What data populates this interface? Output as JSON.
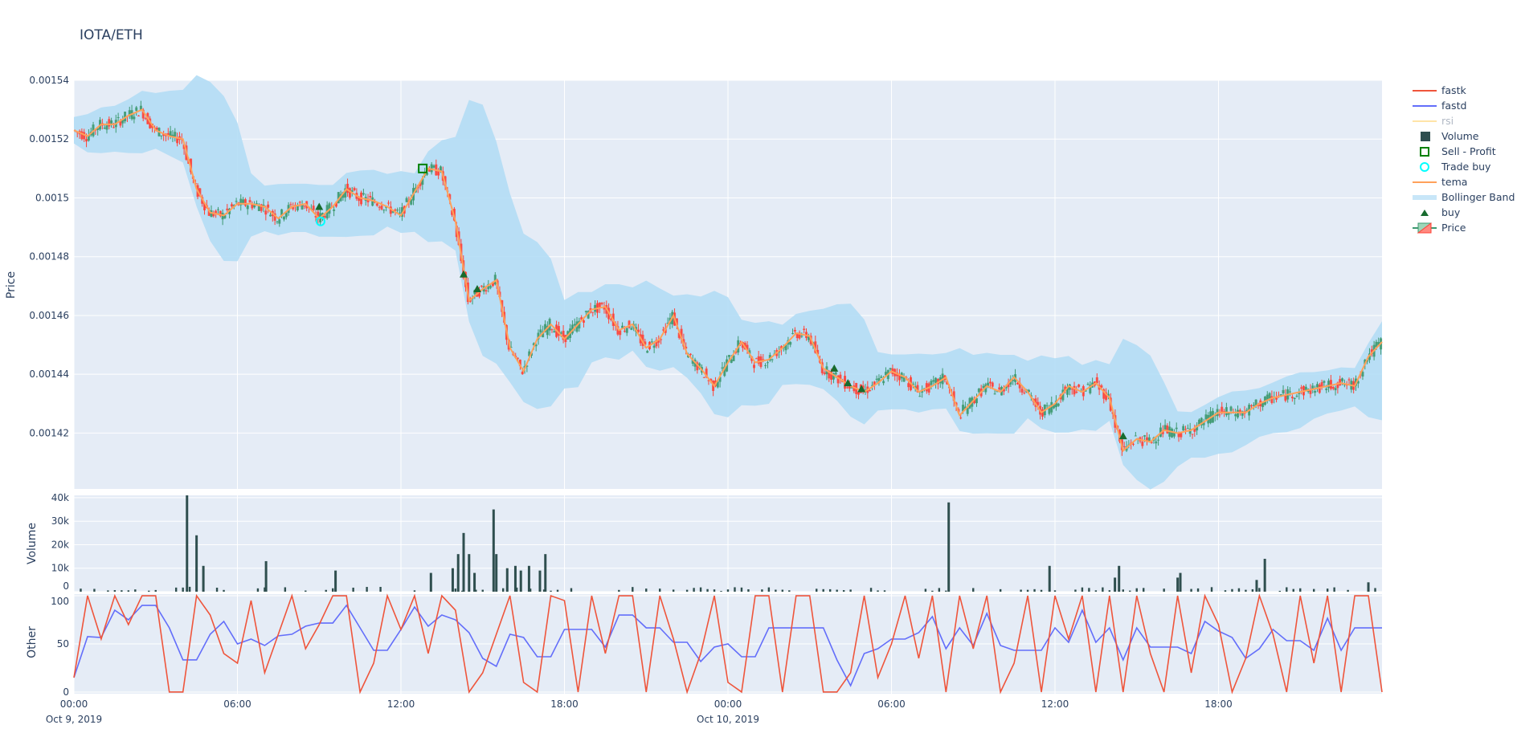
{
  "title": "IOTA/ETH",
  "colors": {
    "increasing": "#3D9970",
    "decreasing": "#FF4136",
    "tema": "#FFA15A",
    "bollinger": "#B3DDF5",
    "fastk": "#EF553B",
    "fastd": "#636EFA",
    "rsi": "#FFE4A8",
    "volume": "#2F4F4F",
    "buy": "#176B2E",
    "sell_profit": "#008000",
    "trade_buy": "#00FFFF",
    "plot_bg": "#E5ECF6",
    "grid": "#FFFFFF"
  },
  "legend": [
    {
      "name": "fastk",
      "symbol": "line",
      "color": "#EF553B"
    },
    {
      "name": "fastd",
      "symbol": "line",
      "color": "#636EFA"
    },
    {
      "name": "rsi",
      "symbol": "line",
      "color": "#FFE4A8",
      "hidden": true
    },
    {
      "name": "Volume",
      "symbol": "square",
      "color": "#2F4F4F"
    },
    {
      "name": "Sell - Profit",
      "symbol": "square-open",
      "color": "#008000"
    },
    {
      "name": "Trade buy",
      "symbol": "circle-open",
      "color": "#00FFFF"
    },
    {
      "name": "tema",
      "symbol": "line",
      "color": "#FFA15A"
    },
    {
      "name": "Bollinger Band",
      "symbol": "band",
      "color": "#C8E6F8"
    },
    {
      "name": "buy",
      "symbol": "triangle-up",
      "color": "#176B2E"
    },
    {
      "name": "Price",
      "symbol": "candlestick",
      "color": "#3D9970"
    }
  ],
  "chart_data": [
    {
      "type": "candlestick",
      "ylabel": "Price",
      "ylim": [
        0.001401,
        0.00154
      ],
      "yticks": [
        "0.00142",
        "0.00144",
        "0.00146",
        "0.00148",
        "0.0015",
        "0.00152",
        "0.00154"
      ],
      "ytick_values": [
        0.00142,
        0.00144,
        0.00146,
        0.00148,
        0.0015,
        0.00152,
        0.00154
      ],
      "x_start": "Oct 9, 2019 00:00",
      "x_step_hours": 0.5,
      "close": [
        0.001523,
        0.001521,
        0.001525,
        0.001525,
        0.001528,
        0.00153,
        0.001523,
        0.001521,
        0.00152,
        0.001503,
        0.001495,
        0.001494,
        0.001498,
        0.001498,
        0.001497,
        0.001493,
        0.001497,
        0.001498,
        0.001493,
        0.001497,
        0.001503,
        0.0015,
        0.001499,
        0.001497,
        0.001494,
        0.001502,
        0.00151,
        0.001509,
        0.001492,
        0.001465,
        0.001469,
        0.001472,
        0.001449,
        0.001441,
        0.001452,
        0.001457,
        0.001452,
        0.001457,
        0.001462,
        0.001463,
        0.001455,
        0.001457,
        0.001449,
        0.001452,
        0.00146,
        0.001447,
        0.001442,
        0.001436,
        0.001444,
        0.001451,
        0.001444,
        0.001445,
        0.001449,
        0.001454,
        0.001453,
        0.001442,
        0.001439,
        0.001436,
        0.001434,
        0.001437,
        0.001441,
        0.001439,
        0.001434,
        0.001436,
        0.001439,
        0.001426,
        0.001431,
        0.001436,
        0.001434,
        0.001439,
        0.001434,
        0.001427,
        0.00143,
        0.001436,
        0.001434,
        0.001437,
        0.001432,
        0.001414,
        0.001418,
        0.001417,
        0.001421,
        0.00142,
        0.001421,
        0.001424,
        0.001427,
        0.001427,
        0.001427,
        0.00143,
        0.001432,
        0.001433,
        0.001434,
        0.001435,
        0.001436,
        0.001437,
        0.001436,
        0.001446,
        0.001451
      ],
      "buy": [
        [
          9.0,
          0.001497
        ],
        [
          14.3,
          0.001474
        ],
        [
          14.8,
          0.001469
        ],
        [
          27.9,
          0.001442
        ],
        [
          28.4,
          0.001437
        ],
        [
          28.9,
          0.001435
        ],
        [
          38.5,
          0.001419
        ]
      ],
      "sell_profit": [
        [
          12.8,
          0.00151
        ]
      ],
      "trade_buy": [
        [
          9.05,
          0.001492
        ]
      ],
      "series": [
        "Price",
        "tema",
        "Bollinger Band",
        "buy",
        "Sell - Profit",
        "Trade buy"
      ]
    },
    {
      "type": "bar",
      "ylabel": "Volume",
      "ylim": [
        0,
        41000
      ],
      "yticks": [
        "0",
        "10k",
        "20k",
        "30k",
        "40k"
      ],
      "ytick_values": [
        0,
        10000,
        20000,
        30000,
        40000
      ],
      "spikes": [
        [
          4.15,
          41000
        ],
        [
          4.5,
          24000
        ],
        [
          4.75,
          11000
        ],
        [
          7.05,
          13000
        ],
        [
          9.6,
          9000
        ],
        [
          13.1,
          8000
        ],
        [
          13.9,
          10000
        ],
        [
          14.1,
          16000
        ],
        [
          14.3,
          25000
        ],
        [
          14.5,
          16000
        ],
        [
          14.7,
          8000
        ],
        [
          15.4,
          35000
        ],
        [
          15.5,
          16000
        ],
        [
          15.9,
          10000
        ],
        [
          16.2,
          11000
        ],
        [
          16.4,
          9000
        ],
        [
          16.7,
          11000
        ],
        [
          17.3,
          16000
        ],
        [
          17.1,
          9000
        ],
        [
          32.1,
          38000
        ],
        [
          35.8,
          11000
        ],
        [
          38.2,
          6000
        ],
        [
          38.35,
          11000
        ],
        [
          40.5,
          6000
        ],
        [
          40.6,
          8000
        ],
        [
          43.4,
          5000
        ],
        [
          43.7,
          14000
        ],
        [
          47.5,
          4000
        ]
      ],
      "series": [
        "Volume"
      ]
    },
    {
      "type": "line",
      "ylabel": "Other",
      "ylim": [
        -1.7,
        101.7
      ],
      "yticks": [
        "0",
        "50",
        "100"
      ],
      "ytick_values": [
        0,
        50,
        100
      ],
      "x_step_hours": 0.5,
      "fastk": [
        15,
        100,
        55,
        100,
        70,
        100,
        100,
        0,
        0,
        100,
        80,
        40,
        30,
        95,
        20,
        60,
        100,
        45,
        70,
        100,
        100,
        0,
        30,
        100,
        65,
        100,
        40,
        100,
        85,
        0,
        20,
        60,
        100,
        10,
        0,
        100,
        95,
        0,
        100,
        40,
        100,
        100,
        0,
        100,
        55,
        0,
        40,
        100,
        10,
        0,
        100,
        100,
        0,
        100,
        100,
        0,
        0,
        20,
        100,
        15,
        50,
        100,
        35,
        100,
        0,
        100,
        45,
        100,
        0,
        30,
        100,
        0,
        100,
        55,
        100,
        0,
        100,
        0,
        100,
        40,
        0,
        100,
        20,
        100,
        70,
        0,
        35,
        100,
        60,
        0,
        100,
        30,
        100,
        0,
        100,
        100,
        0
      ],
      "series": [
        "fastk",
        "fastd",
        "rsi"
      ]
    }
  ],
  "xaxis": {
    "ticks": [
      {
        "time": "00:00",
        "date": "Oct 9, 2019",
        "hour": 0
      },
      {
        "time": "06:00",
        "date": "",
        "hour": 6
      },
      {
        "time": "12:00",
        "date": "",
        "hour": 12
      },
      {
        "time": "18:00",
        "date": "",
        "hour": 18
      },
      {
        "time": "00:00",
        "date": "Oct 10, 2019",
        "hour": 24
      },
      {
        "time": "06:00",
        "date": "",
        "hour": 30
      },
      {
        "time": "12:00",
        "date": "",
        "hour": 36
      },
      {
        "time": "18:00",
        "date": "",
        "hour": 42
      }
    ],
    "range_hours": [
      0,
      48
    ]
  }
}
